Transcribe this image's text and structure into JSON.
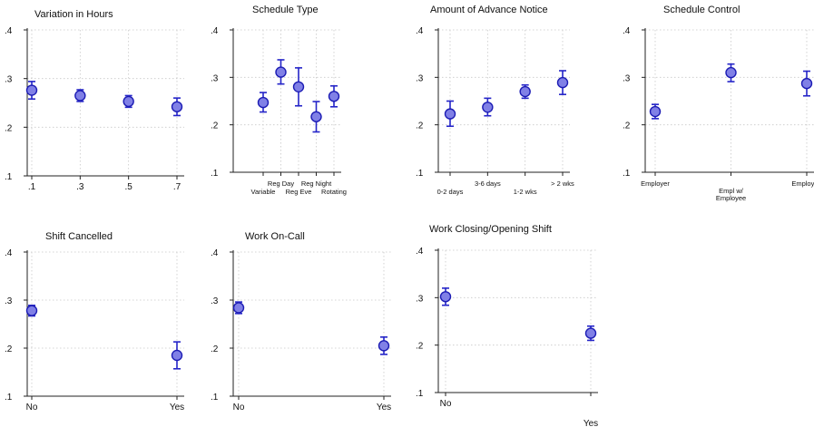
{
  "chart_data": [
    {
      "type": "scatter",
      "title": "Variation in Hours",
      "ylim": [
        0.1,
        0.4
      ],
      "yticks": [
        0.1,
        0.2,
        0.3,
        0.4
      ],
      "ytick_labels": [
        ".1",
        ".2",
        ".3",
        ".4"
      ],
      "categories": [
        ".1",
        ".3",
        ".5",
        ".7"
      ],
      "values": [
        0.276,
        0.265,
        0.253,
        0.242
      ],
      "ci_low": [
        0.258,
        0.253,
        0.241,
        0.224
      ],
      "ci_high": [
        0.294,
        0.277,
        0.265,
        0.26
      ],
      "grid": true
    },
    {
      "type": "scatter",
      "title": "Schedule Type",
      "ylim": [
        0.1,
        0.4
      ],
      "yticks": [
        0.1,
        0.2,
        0.3,
        0.4
      ],
      "ytick_labels": [
        ".1",
        ".2",
        ".3",
        ".4"
      ],
      "categories": [
        "Variable",
        "Reg Day",
        "Reg Eve",
        "Reg Night",
        "Rotating"
      ],
      "values": [
        0.247,
        0.311,
        0.28,
        0.217,
        0.26
      ],
      "ci_low": [
        0.227,
        0.286,
        0.24,
        0.185,
        0.238
      ],
      "ci_high": [
        0.268,
        0.337,
        0.32,
        0.249,
        0.282
      ],
      "grid": true
    },
    {
      "type": "scatter",
      "title": "Amount of Advance Notice",
      "ylim": [
        0.1,
        0.4
      ],
      "yticks": [
        0.1,
        0.2,
        0.3,
        0.4
      ],
      "ytick_labels": [
        ".1",
        ".2",
        ".3",
        ".4"
      ],
      "categories": [
        "0-2 days",
        "3-6 days",
        "1-2 wks",
        "> 2 wks"
      ],
      "values": [
        0.223,
        0.237,
        0.27,
        0.289
      ],
      "ci_low": [
        0.197,
        0.219,
        0.256,
        0.264
      ],
      "ci_high": [
        0.25,
        0.256,
        0.284,
        0.314
      ],
      "grid": true
    },
    {
      "type": "scatter",
      "title": "Schedule Control",
      "ylim": [
        0.1,
        0.4
      ],
      "yticks": [
        0.1,
        0.2,
        0.3,
        0.4
      ],
      "ytick_labels": [
        ".1",
        ".2",
        ".3",
        ".4"
      ],
      "categories": [
        "Employer",
        "Empl w/ Employee",
        "Employee"
      ],
      "values": [
        0.228,
        0.31,
        0.287
      ],
      "ci_low": [
        0.213,
        0.291,
        0.261
      ],
      "ci_high": [
        0.243,
        0.328,
        0.313
      ],
      "grid": true
    },
    {
      "type": "scatter",
      "title": "Shift Cancelled",
      "ylim": [
        0.1,
        0.4
      ],
      "yticks": [
        0.1,
        0.2,
        0.3,
        0.4
      ],
      "ytick_labels": [
        ".1",
        ".2",
        ".3",
        ".4"
      ],
      "categories": [
        "No",
        "Yes"
      ],
      "values": [
        0.278,
        0.185
      ],
      "ci_low": [
        0.267,
        0.157
      ],
      "ci_high": [
        0.289,
        0.213
      ],
      "grid": true
    },
    {
      "type": "scatter",
      "title": "Work On-Call",
      "ylim": [
        0.1,
        0.4
      ],
      "yticks": [
        0.1,
        0.2,
        0.3,
        0.4
      ],
      "ytick_labels": [
        ".1",
        ".2",
        ".3",
        ".4"
      ],
      "categories": [
        "No",
        "Yes"
      ],
      "values": [
        0.284,
        0.205
      ],
      "ci_low": [
        0.272,
        0.187
      ],
      "ci_high": [
        0.296,
        0.223
      ],
      "grid": true
    },
    {
      "type": "scatter",
      "title": "Work Closing/Opening Shift",
      "ylim": [
        0.1,
        0.4
      ],
      "yticks": [
        0.1,
        0.2,
        0.3,
        0.4
      ],
      "ytick_labels": [
        ".1",
        ".2",
        ".3",
        ".4"
      ],
      "categories": [
        "No",
        "Yes"
      ],
      "values": [
        0.302,
        0.225
      ],
      "ci_low": [
        0.284,
        0.21
      ],
      "ci_high": [
        0.32,
        0.24
      ],
      "grid": true
    }
  ],
  "colors": {
    "marker_fill": "#8080e6",
    "marker_stroke": "#1c1cb4",
    "errorbar": "#2424c8",
    "grid": "#c8c8c8"
  }
}
